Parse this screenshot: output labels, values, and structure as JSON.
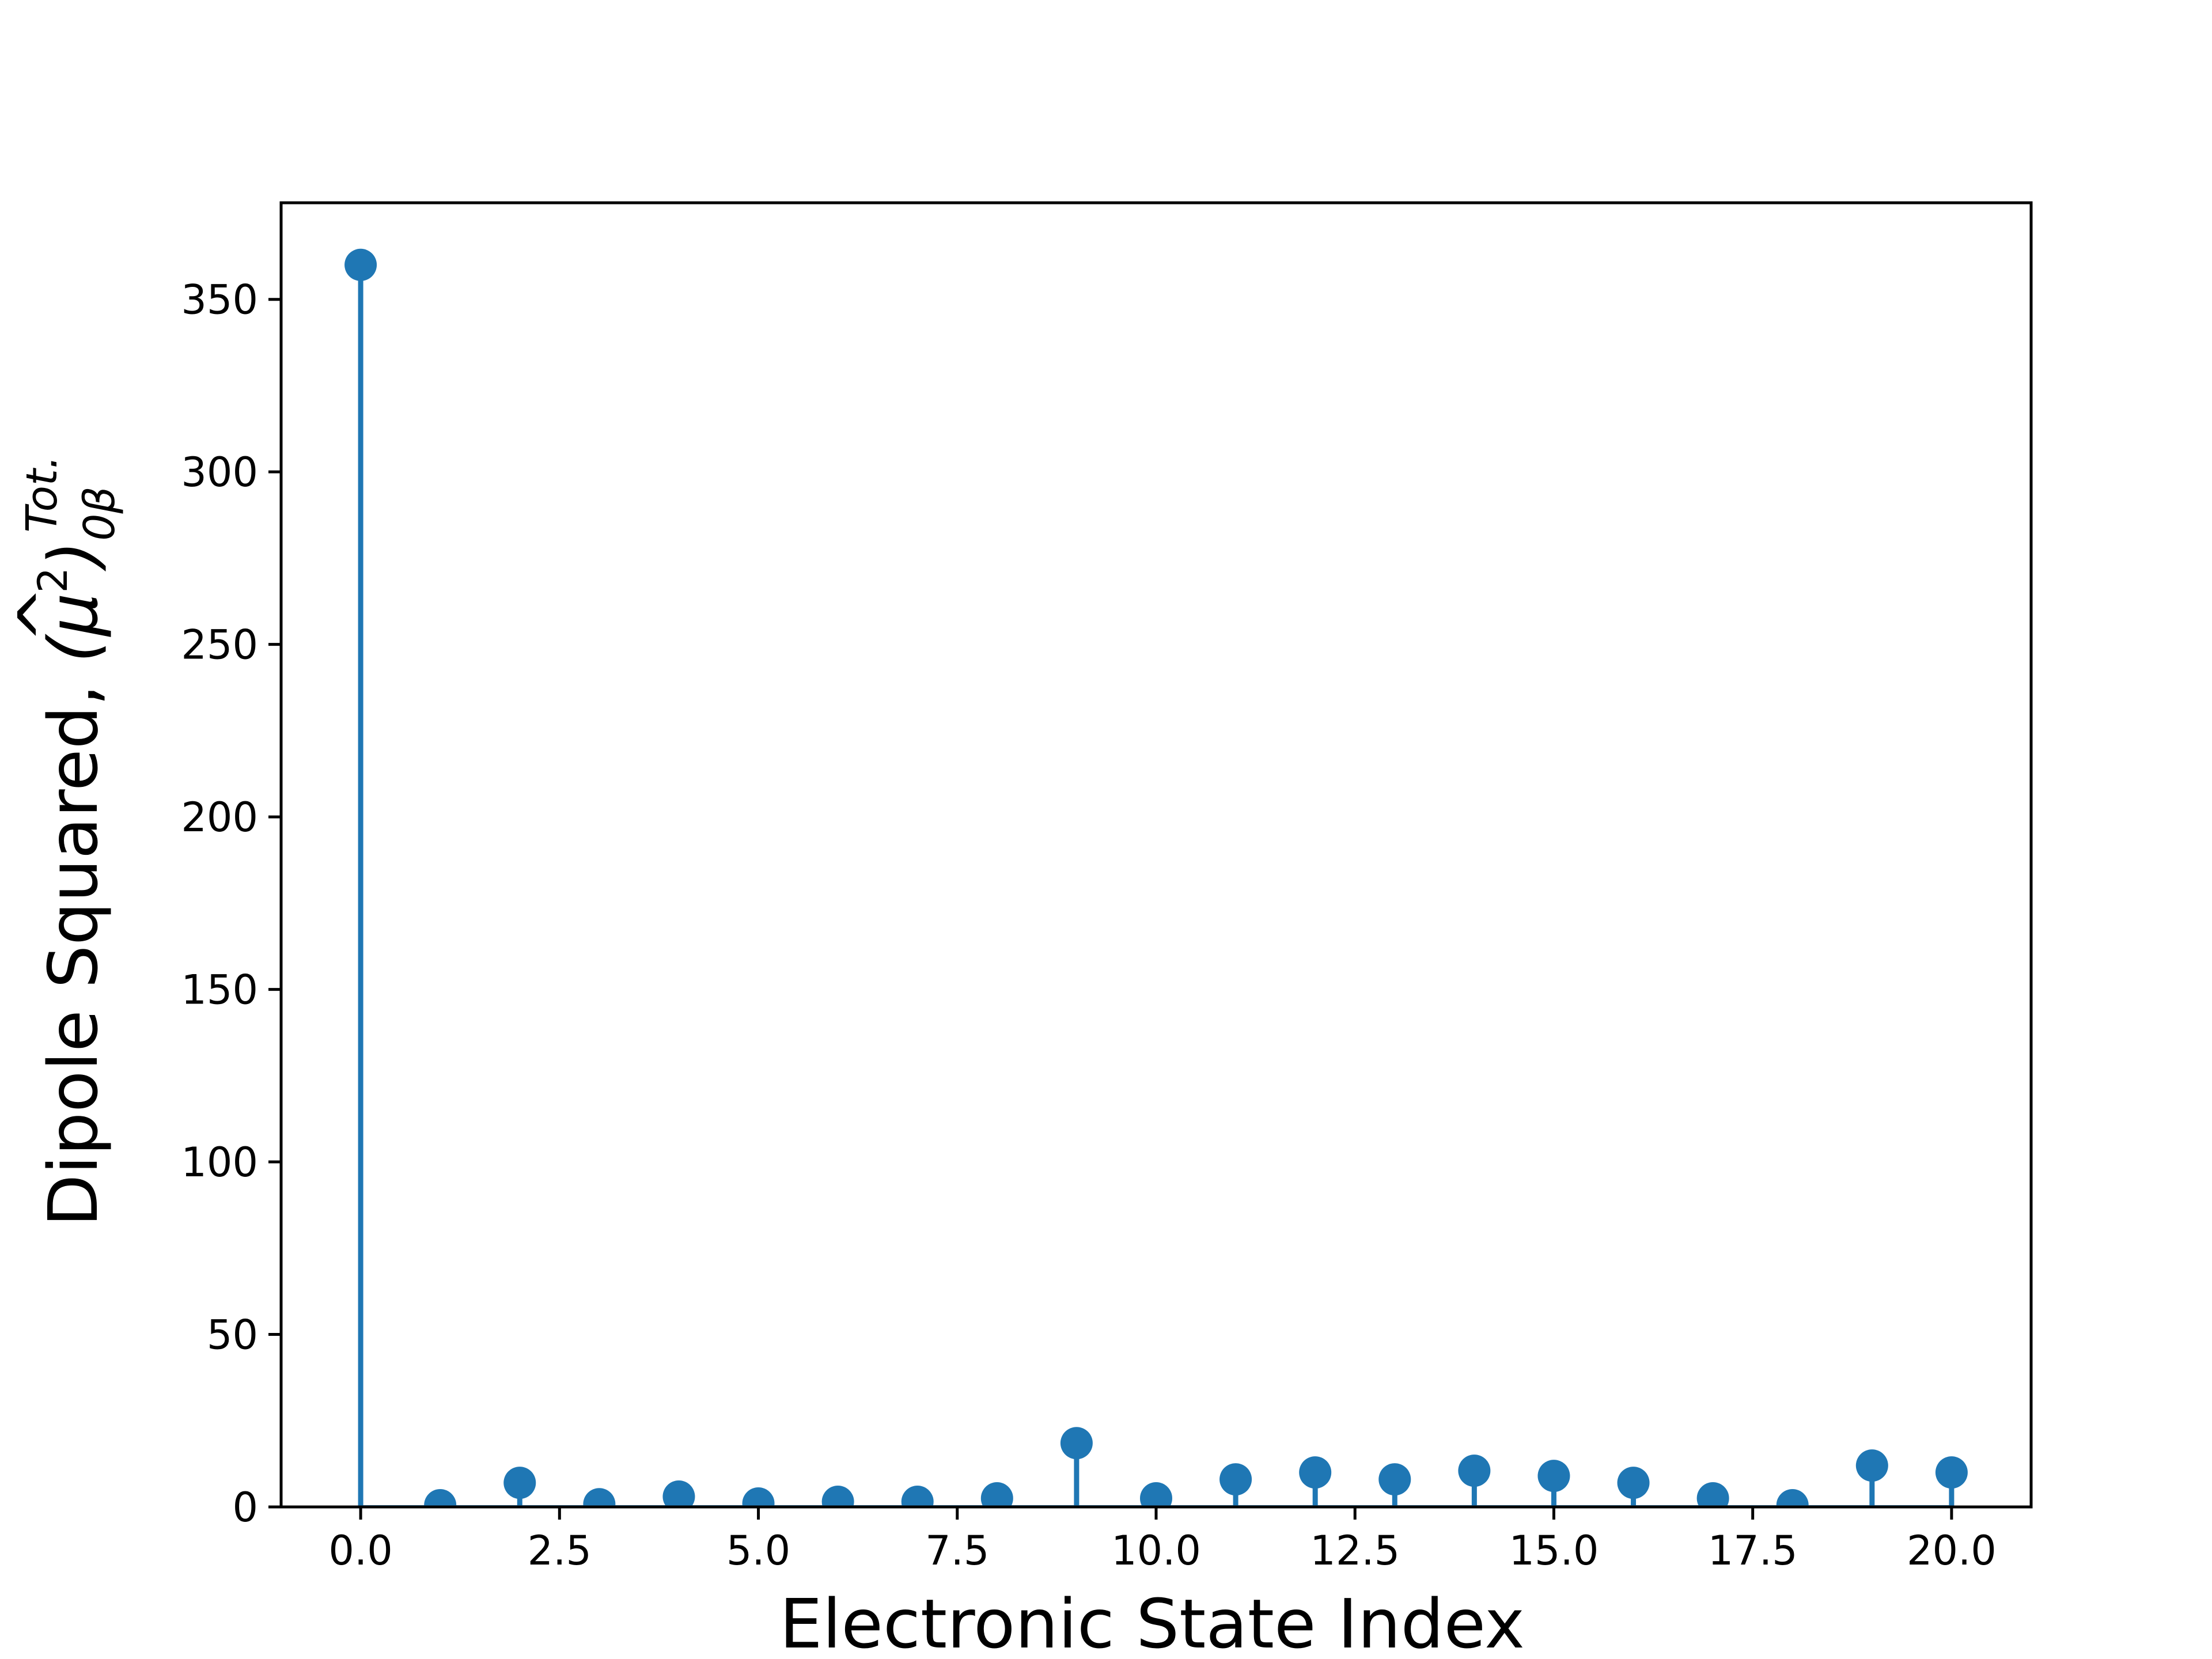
{
  "chart_data": {
    "type": "stem",
    "title": "",
    "xlabel": "Electronic State Index",
    "ylabel_main": "Dipole Squared, ",
    "ylabel_math": {
      "open": "(",
      "base": "μ",
      "hat": "^",
      "power": "2",
      "close": ")",
      "subscript": "0β",
      "superscript": "Tot."
    },
    "x": [
      0,
      1,
      2,
      3,
      4,
      5,
      6,
      7,
      8,
      9,
      10,
      11,
      12,
      13,
      14,
      15,
      16,
      17,
      18,
      19,
      20
    ],
    "values": [
      360,
      0.5,
      7,
      0.8,
      3,
      1,
      1.5,
      1.5,
      2.5,
      18.5,
      2.5,
      8,
      10,
      8,
      10.5,
      9,
      7,
      2.5,
      0.5,
      12,
      10
    ],
    "xlim": [
      -1.0,
      21.0
    ],
    "ylim": [
      0,
      378
    ],
    "xticks": [
      0.0,
      2.5,
      5.0,
      7.5,
      10.0,
      12.5,
      15.0,
      17.5,
      20.0
    ],
    "xtick_labels": [
      "0.0",
      "2.5",
      "5.0",
      "7.5",
      "10.0",
      "12.5",
      "15.0",
      "17.5",
      "20.0"
    ],
    "yticks": [
      0,
      50,
      100,
      150,
      200,
      250,
      300,
      350
    ],
    "ytick_labels": [
      "0",
      "50",
      "100",
      "150",
      "200",
      "250",
      "300",
      "350"
    ],
    "grid": false,
    "legend": "none",
    "colors": {
      "series": "#1f77b4",
      "axes": "#000000"
    }
  }
}
